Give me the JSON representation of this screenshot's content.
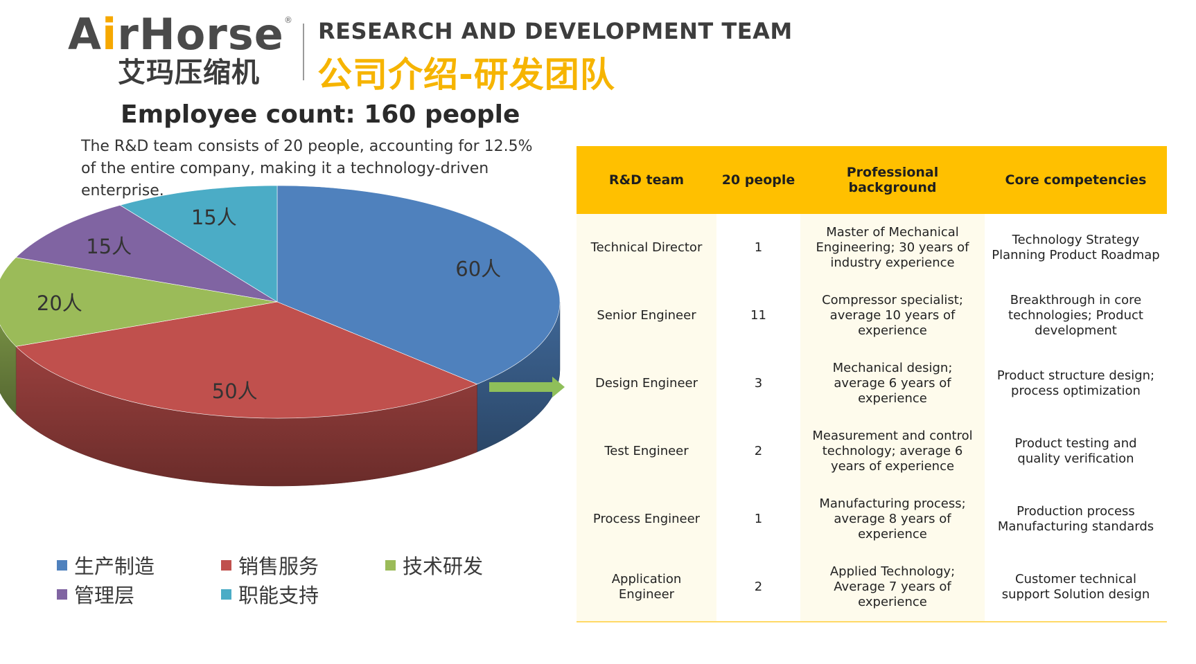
{
  "logo": {
    "brand_a": "A",
    "brand_i": "i",
    "brand_rest": "rHorse",
    "brand_cn": "艾玛压缩机",
    "reg": "®"
  },
  "header": {
    "title_en": "RESEARCH AND DEVELOPMENT TEAM",
    "title_cn": "公司介绍-研发团队"
  },
  "summary": {
    "headline": "Employee count: 160 people",
    "description": "The R&D team consists of 20 people, accounting for 12.5% of the entire company, making it a technology-driven enterprise."
  },
  "chart_data": {
    "type": "pie",
    "title": "",
    "unit": "人",
    "slices": [
      {
        "name": "生产制造",
        "value": 60,
        "label": "60人",
        "color": "#4f81bd"
      },
      {
        "name": "销售服务",
        "value": 50,
        "label": "50人",
        "color": "#c0504d"
      },
      {
        "name": "技术研发",
        "value": 20,
        "label": "20人",
        "color": "#9bbb59"
      },
      {
        "name": "管理层",
        "value": 15,
        "label": "15人",
        "color": "#8064a2"
      },
      {
        "name": "职能支持",
        "value": 15,
        "label": "15人",
        "color": "#4bacc6"
      }
    ],
    "legend_position": "bottom",
    "style": "3d"
  },
  "table": {
    "headers": [
      "R&D team",
      "20 people",
      "Professional background",
      "Core competencies"
    ],
    "rows": [
      [
        "Technical Director",
        "1",
        "Master of Mechanical Engineering; 30 years of industry experience",
        "Technology Strategy Planning Product Roadmap"
      ],
      [
        "Senior Engineer",
        "11",
        "Compressor specialist; average 10 years of experience",
        "Breakthrough in core technologies; Product development"
      ],
      [
        "Design Engineer",
        "3",
        "Mechanical design; average 6 years of experience",
        "Product structure design; process optimization"
      ],
      [
        "Test Engineer",
        "2",
        "Measurement and control technology; average 6 years of experience",
        "Product testing and quality verification"
      ],
      [
        "Process Engineer",
        "1",
        "Manufacturing process; average 8 years of experience",
        "Production process Manufacturing standards"
      ],
      [
        "Application Engineer",
        "2",
        "Applied Technology; Average 7 years of experience",
        "Customer technical support Solution design"
      ]
    ]
  },
  "colors": {
    "accent": "#ffc000",
    "title_cn": "#f6b400",
    "arrow": "#8fbf5a"
  }
}
